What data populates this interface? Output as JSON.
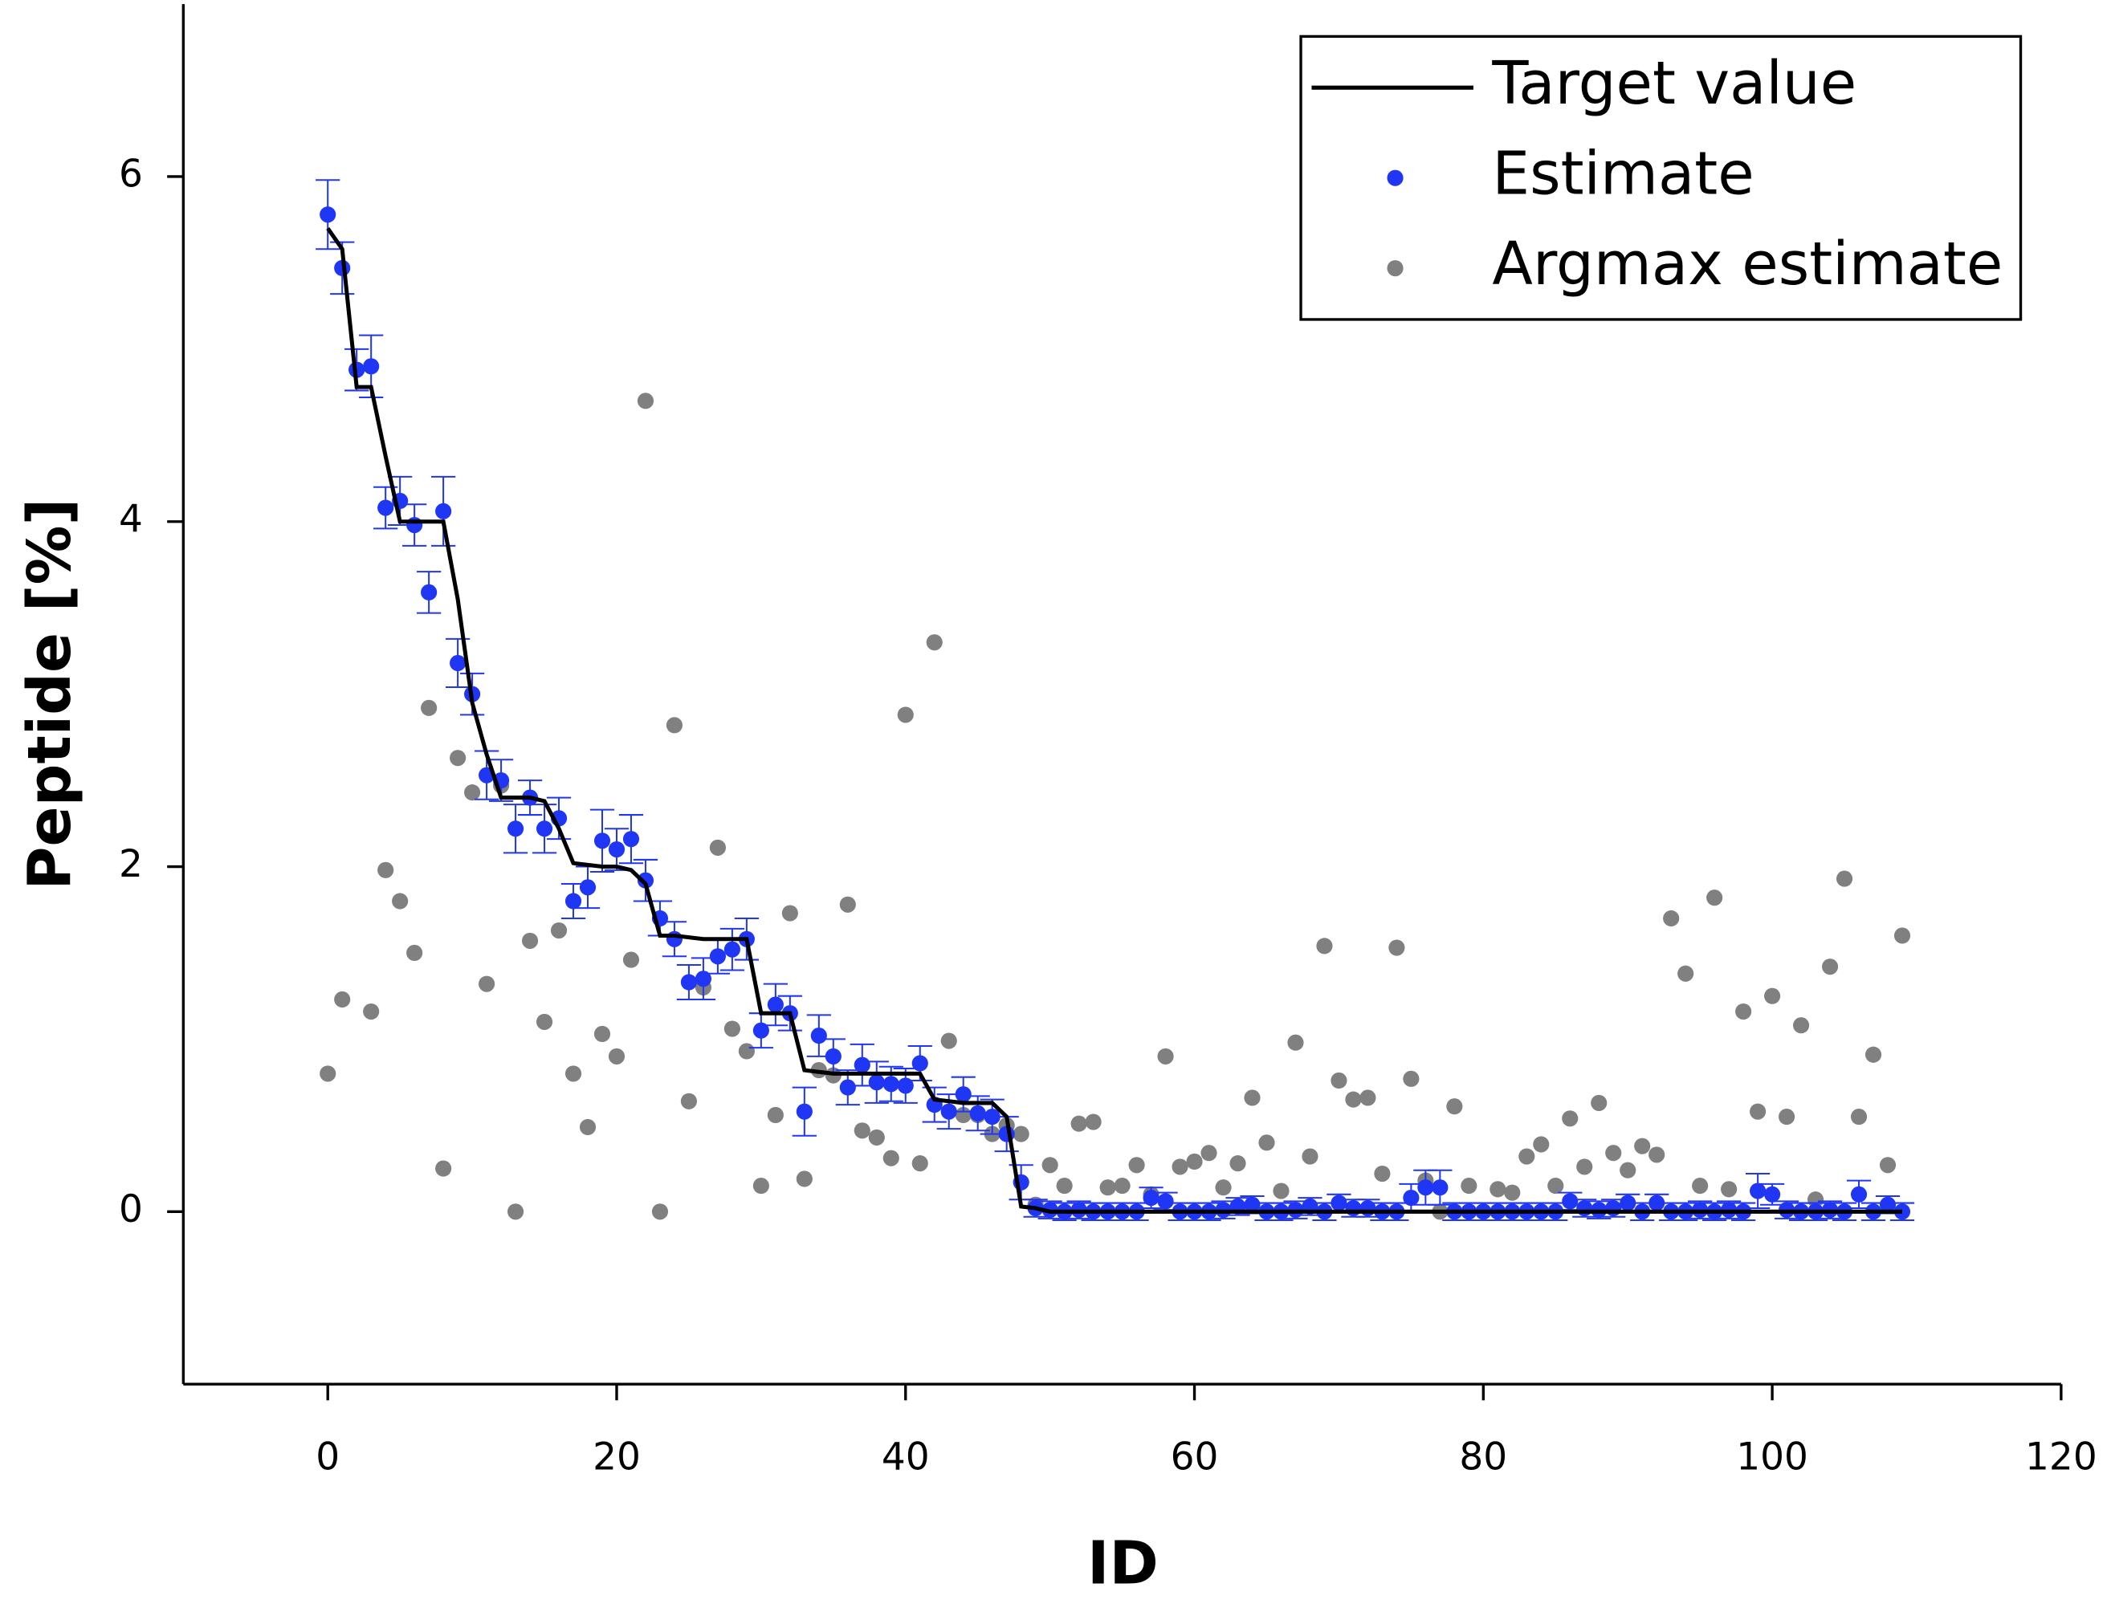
{
  "chart_data": {
    "type": "scatter",
    "xlabel": "ID",
    "ylabel": "Peptide [%]",
    "xlim": [
      -10,
      120
    ],
    "xticks": [
      0,
      20,
      40,
      60,
      80,
      100,
      120
    ],
    "ylim": [
      -1,
      7
    ],
    "yticks": [
      0,
      2,
      4,
      6
    ],
    "legend": "upper right",
    "x": [
      0,
      1,
      2,
      3,
      4,
      5,
      6,
      7,
      8,
      9,
      10,
      11,
      12,
      13,
      14,
      15,
      16,
      17,
      18,
      19,
      20,
      21,
      22,
      23,
      24,
      25,
      26,
      27,
      28,
      29,
      30,
      31,
      32,
      33,
      34,
      35,
      36,
      37,
      38,
      39,
      40,
      41,
      42,
      43,
      44,
      45,
      46,
      47,
      48,
      49,
      50,
      51,
      52,
      53,
      54,
      55,
      56,
      57,
      58,
      59,
      60,
      61,
      62,
      63,
      64,
      65,
      66,
      67,
      68,
      69,
      70,
      71,
      72,
      73,
      74,
      75,
      76,
      77,
      78,
      79,
      80,
      81,
      82,
      83,
      84,
      85,
      86,
      87,
      88,
      89,
      90,
      91,
      92,
      93,
      94,
      95,
      96,
      97,
      98,
      99,
      100,
      101,
      102,
      103,
      104,
      105,
      106,
      107,
      108,
      109
    ],
    "series": [
      {
        "name": "Target value",
        "kind": "line",
        "color": "#000000",
        "values": [
          5.7,
          5.58,
          4.78,
          4.78,
          4.38,
          4.0,
          4.0,
          4.0,
          4.0,
          3.55,
          2.95,
          2.65,
          2.4,
          2.4,
          2.4,
          2.38,
          2.22,
          2.02,
          2.01,
          2.0,
          2.0,
          1.98,
          1.9,
          1.6,
          1.6,
          1.59,
          1.58,
          1.58,
          1.58,
          1.58,
          1.15,
          1.15,
          1.15,
          0.82,
          0.81,
          0.8,
          0.8,
          0.8,
          0.8,
          0.8,
          0.8,
          0.8,
          0.65,
          0.64,
          0.63,
          0.63,
          0.63,
          0.55,
          0.03,
          0.02,
          0,
          0,
          0,
          0,
          0,
          0,
          0,
          0,
          0,
          0,
          0,
          0,
          0,
          0,
          0,
          0,
          0,
          0,
          0,
          0,
          0,
          0,
          0,
          0,
          0,
          0,
          0,
          0,
          0,
          0,
          0,
          0,
          0,
          0,
          0,
          0,
          0,
          0,
          0,
          0,
          0,
          0,
          0,
          0,
          0,
          0,
          0,
          0,
          0,
          0,
          0,
          0,
          0,
          0,
          0,
          0,
          0,
          0,
          0,
          0
        ]
      },
      {
        "name": "Estimate",
        "kind": "points",
        "color": "#2036f5",
        "values": [
          5.78,
          5.47,
          4.88,
          4.9,
          4.08,
          4.12,
          3.98,
          3.59,
          4.06,
          3.18,
          3.0,
          2.53,
          2.5,
          2.22,
          2.4,
          2.22,
          2.28,
          1.8,
          1.88,
          2.15,
          2.1,
          2.16,
          1.92,
          1.7,
          1.58,
          1.33,
          1.35,
          1.48,
          1.52,
          1.58,
          1.05,
          1.2,
          1.15,
          0.58,
          1.02,
          0.9,
          0.72,
          0.85,
          0.75,
          0.74,
          0.73,
          0.86,
          0.62,
          0.58,
          0.68,
          0.57,
          0.55,
          0.45,
          0.17,
          0.02,
          0.01,
          0,
          0.01,
          0,
          0,
          0,
          0,
          0.08,
          0.06,
          0,
          0,
          0,
          0.01,
          0.03,
          0.04,
          0,
          0,
          0.01,
          0.03,
          0,
          0.05,
          0.02,
          0.02,
          0,
          0,
          0.08,
          0.14,
          0.14,
          0,
          0,
          0,
          0,
          0,
          0,
          0,
          0,
          0.06,
          0.02,
          0.01,
          0.02,
          0.05,
          0,
          0.05,
          0,
          0,
          0.01,
          0,
          0.01,
          0,
          0.12,
          0.1,
          0.01,
          0,
          0,
          0.01,
          0,
          0.1,
          0,
          0.04,
          0
        ],
        "errors": [
          0.2,
          0.15,
          0.12,
          0.18,
          0.12,
          0.14,
          0.12,
          0.12,
          0.2,
          0.14,
          0.12,
          0.14,
          0.12,
          0.14,
          0.1,
          0.14,
          0.12,
          0.1,
          0.12,
          0.18,
          0.12,
          0.14,
          0.12,
          0.1,
          0.1,
          0.1,
          0.12,
          0.1,
          0.12,
          0.12,
          0.1,
          0.12,
          0.1,
          0.14,
          0.12,
          0.1,
          0.1,
          0.12,
          0.12,
          0.1,
          0.1,
          0.1,
          0.1,
          0.1,
          0.1,
          0.1,
          0.1,
          0.1,
          0.1,
          0.05,
          0.05,
          0.05,
          0.05,
          0.05,
          0.05,
          0.05,
          0.05,
          0.06,
          0.05,
          0.05,
          0.05,
          0.05,
          0.05,
          0.05,
          0.05,
          0.05,
          0.05,
          0.05,
          0.05,
          0.05,
          0.05,
          0.05,
          0.05,
          0.05,
          0.05,
          0.08,
          0.1,
          0.1,
          0.05,
          0.05,
          0.05,
          0.05,
          0.05,
          0.05,
          0.05,
          0.05,
          0.05,
          0.05,
          0.05,
          0.05,
          0.05,
          0.05,
          0.05,
          0.05,
          0.05,
          0.05,
          0.05,
          0.05,
          0.05,
          0.1,
          0.06,
          0.05,
          0.05,
          0.05,
          0.05,
          0.05,
          0.08,
          0.05,
          0.05,
          0.05
        ]
      },
      {
        "name": "Argmax estimate",
        "kind": "points",
        "color": "#808080",
        "values": [
          0.8,
          1.23,
          4.88,
          1.16,
          1.98,
          1.8,
          1.5,
          2.92,
          0.25,
          2.63,
          2.43,
          1.32,
          2.47,
          0,
          1.57,
          1.1,
          1.63,
          0.8,
          0.49,
          1.03,
          0.9,
          1.46,
          4.7,
          0,
          2.82,
          0.64,
          1.3,
          2.11,
          1.06,
          0.93,
          0.15,
          0.56,
          1.73,
          0.19,
          0.82,
          0.79,
          1.78,
          0.47,
          0.43,
          0.31,
          2.88,
          0.28,
          3.3,
          0.99,
          0.56,
          0.56,
          0.45,
          0.5,
          0.45,
          0.04,
          0.27,
          0.15,
          0.51,
          0.52,
          0.14,
          0.15,
          0.27,
          0.1,
          0.9,
          0.26,
          0.29,
          0.34,
          0.14,
          0.28,
          0.66,
          0.4,
          0.12,
          0.98,
          0.32,
          1.54,
          0.76,
          0.65,
          0.66,
          0.22,
          1.53,
          0.77,
          0.18,
          0,
          0.61,
          0.15,
          0,
          0.13,
          0.11,
          0.32,
          0.39,
          0.15,
          0.54,
          0.26,
          0.63,
          0.34,
          0.24,
          0.38,
          0.33,
          1.7,
          1.38,
          0.15,
          1.82,
          0.13,
          1.16,
          0.58,
          1.25,
          0.55,
          1.08,
          0.07,
          1.42,
          1.93,
          0.55,
          0.91,
          0.27,
          1.6
        ]
      }
    ]
  }
}
